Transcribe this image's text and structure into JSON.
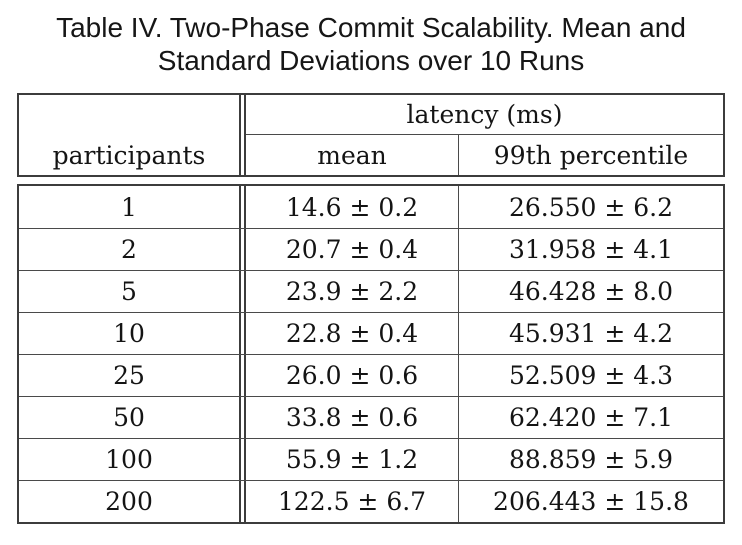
{
  "caption": {
    "line1": "Table IV. Two-Phase Commit Scalability. Mean and",
    "line2": "Standard Deviations over 10 Runs"
  },
  "table": {
    "group_header": "latency (ms)",
    "col_participants": "participants",
    "col_mean": "mean",
    "col_p99": "99th percentile",
    "rows": [
      {
        "participants": "1",
        "mean": "14.6 ± 0.2",
        "p99": "26.550 ± 6.2"
      },
      {
        "participants": "2",
        "mean": "20.7 ± 0.4",
        "p99": "31.958 ± 4.1"
      },
      {
        "participants": "5",
        "mean": "23.9 ± 2.2",
        "p99": "46.428 ± 8.0"
      },
      {
        "participants": "10",
        "mean": "22.8 ± 0.4",
        "p99": "45.931 ± 4.2"
      },
      {
        "participants": "25",
        "mean": "26.0 ± 0.6",
        "p99": "52.509 ± 4.3"
      },
      {
        "participants": "50",
        "mean": "33.8 ± 0.6",
        "p99": "62.420 ± 7.1"
      },
      {
        "participants": "100",
        "mean": "55.9 ± 1.2",
        "p99": "88.859 ± 5.9"
      },
      {
        "participants": "200",
        "mean": "122.5 ± 6.7",
        "p99": "206.443 ± 15.8"
      }
    ]
  },
  "colors": {
    "background": "#ffffff",
    "text": "#141414",
    "border": "#3c3c3c"
  }
}
